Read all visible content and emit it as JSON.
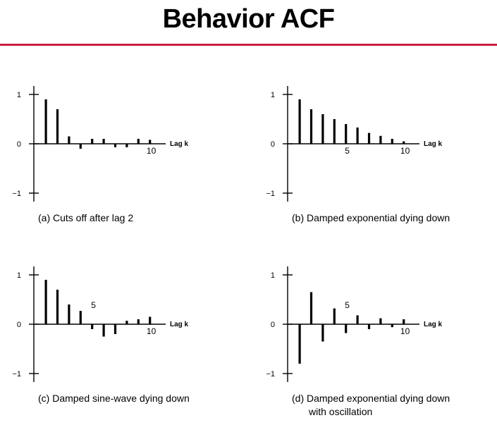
{
  "title": "Behavior ACF",
  "colors": {
    "rule": "#c8203c",
    "ink": "#000000"
  },
  "chart_data": [
    {
      "type": "bar",
      "caption": "(a) Cuts off after lag 2",
      "xlabel": "Lag k",
      "ylim": [
        -1,
        1
      ],
      "yticks": [
        "1",
        "0",
        "−1"
      ],
      "xtick_labels": [
        {
          "lag": 10,
          "label": "10"
        }
      ],
      "lags": [
        1,
        2,
        3,
        4,
        5,
        6,
        7,
        8,
        9,
        10
      ],
      "values": [
        0.9,
        0.7,
        0.15,
        -0.1,
        0.1,
        0.1,
        -0.07,
        -0.07,
        0.1,
        0.08
      ]
    },
    {
      "type": "bar",
      "caption": "(b) Damped exponential dying down",
      "xlabel": "Lag k",
      "ylim": [
        -1,
        1
      ],
      "yticks": [
        "1",
        "0",
        "−1"
      ],
      "xtick_labels": [
        {
          "lag": 5,
          "label": "5"
        },
        {
          "lag": 10,
          "label": "10"
        }
      ],
      "lags": [
        1,
        2,
        3,
        4,
        5,
        6,
        7,
        8,
        9,
        10
      ],
      "values": [
        0.9,
        0.7,
        0.6,
        0.5,
        0.4,
        0.33,
        0.22,
        0.16,
        0.1,
        0.05
      ]
    },
    {
      "type": "bar",
      "caption": "(c) Damped sine-wave dying down",
      "xlabel": "Lag k",
      "ylim": [
        -1,
        1
      ],
      "yticks": [
        "1",
        "0",
        "−1"
      ],
      "xtick_labels": [
        {
          "lag": 5,
          "label": "5"
        },
        {
          "lag": 10,
          "label": "10"
        }
      ],
      "lags": [
        1,
        2,
        3,
        4,
        5,
        6,
        7,
        8,
        9,
        10
      ],
      "values": [
        0.9,
        0.7,
        0.4,
        0.27,
        -0.1,
        -0.25,
        -0.2,
        0.07,
        0.1,
        0.15
      ]
    },
    {
      "type": "bar",
      "caption": "(d) Damped exponential dying down",
      "caption2": "with oscillation",
      "xlabel": "Lag k",
      "ylim": [
        -1,
        1
      ],
      "yticks": [
        "1",
        "0",
        "−1"
      ],
      "xtick_labels": [
        {
          "lag": 5,
          "label": "5"
        },
        {
          "lag": 10,
          "label": "10"
        }
      ],
      "lags": [
        1,
        2,
        3,
        4,
        5,
        6,
        7,
        8,
        9,
        10
      ],
      "values": [
        -0.8,
        0.65,
        -0.35,
        0.32,
        -0.18,
        0.18,
        -0.1,
        0.12,
        -0.06,
        0.1
      ]
    }
  ]
}
